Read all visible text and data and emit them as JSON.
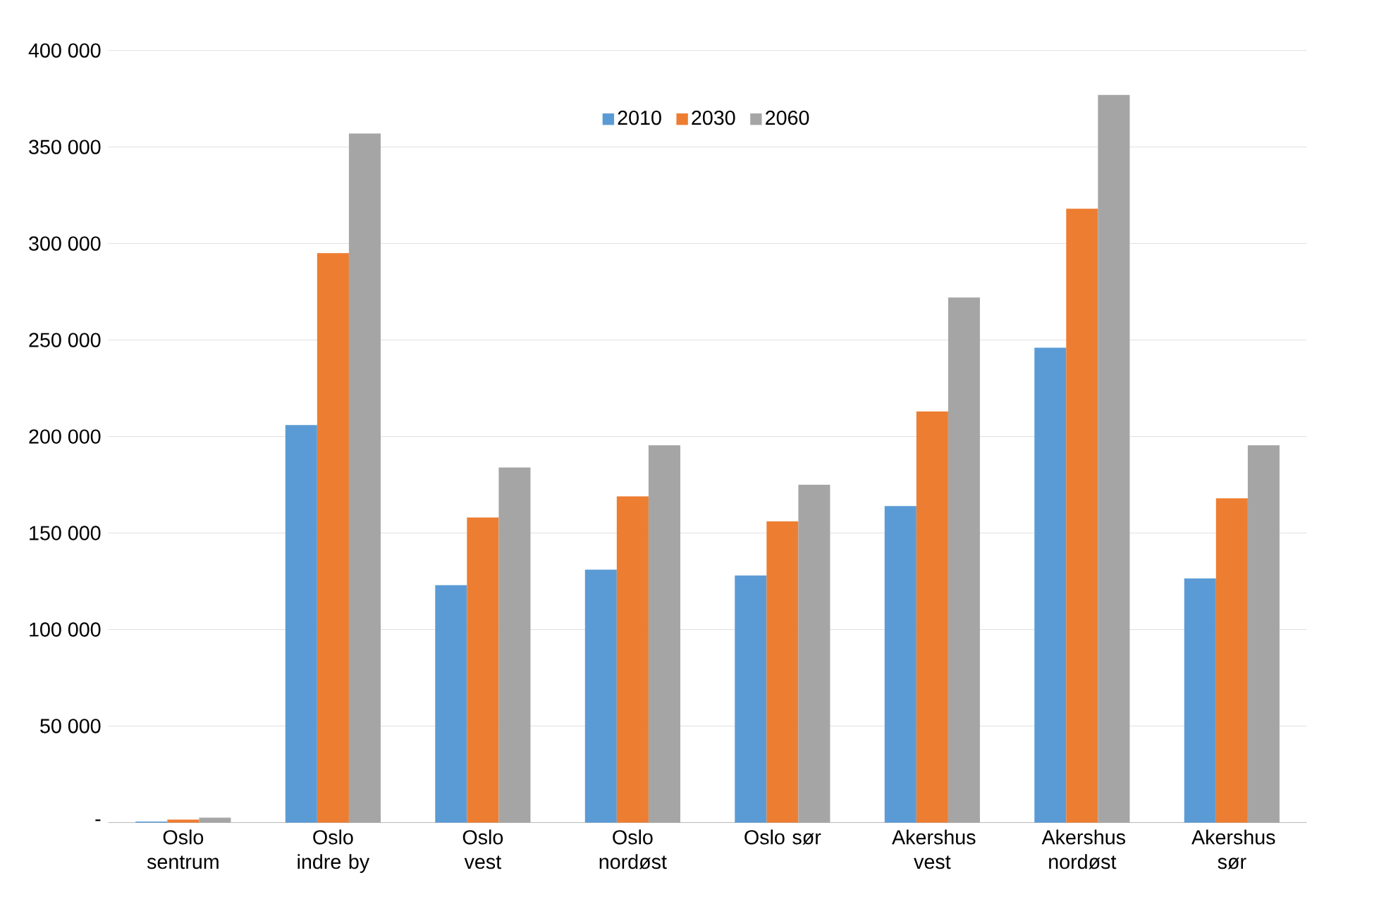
{
  "chart_data": {
    "type": "bar",
    "categories": [
      "Oslo sentrum",
      "Oslo indre by",
      "Oslo vest",
      "Oslo nordøst",
      "Oslo sør",
      "Akershus vest",
      "Akershus nordøst",
      "Akershus sør"
    ],
    "series": [
      {
        "name": "2010",
        "color": "#5b9bd5",
        "values": [
          500,
          206000,
          123000,
          131000,
          128000,
          164000,
          246000,
          126500
        ]
      },
      {
        "name": "2030",
        "color": "#ed7d31",
        "values": [
          1500,
          295000,
          158000,
          169000,
          156000,
          213000,
          318000,
          168000
        ]
      },
      {
        "name": "2060",
        "color": "#a5a5a5",
        "values": [
          2500,
          357000,
          184000,
          195500,
          175000,
          272000,
          377000,
          195500
        ]
      }
    ],
    "ylim": [
      0,
      400000
    ],
    "yticks": [
      {
        "value": 0,
        "label": "-"
      },
      {
        "value": 50000,
        "label": "50 000"
      },
      {
        "value": 100000,
        "label": "100 000"
      },
      {
        "value": 150000,
        "label": "150 000"
      },
      {
        "value": 200000,
        "label": "200 000"
      },
      {
        "value": 250000,
        "label": "250 000"
      },
      {
        "value": 300000,
        "label": "300 000"
      },
      {
        "value": 350000,
        "label": "350 000"
      },
      {
        "value": 400000,
        "label": "400 000"
      }
    ],
    "grid": "y",
    "legend": "top"
  }
}
